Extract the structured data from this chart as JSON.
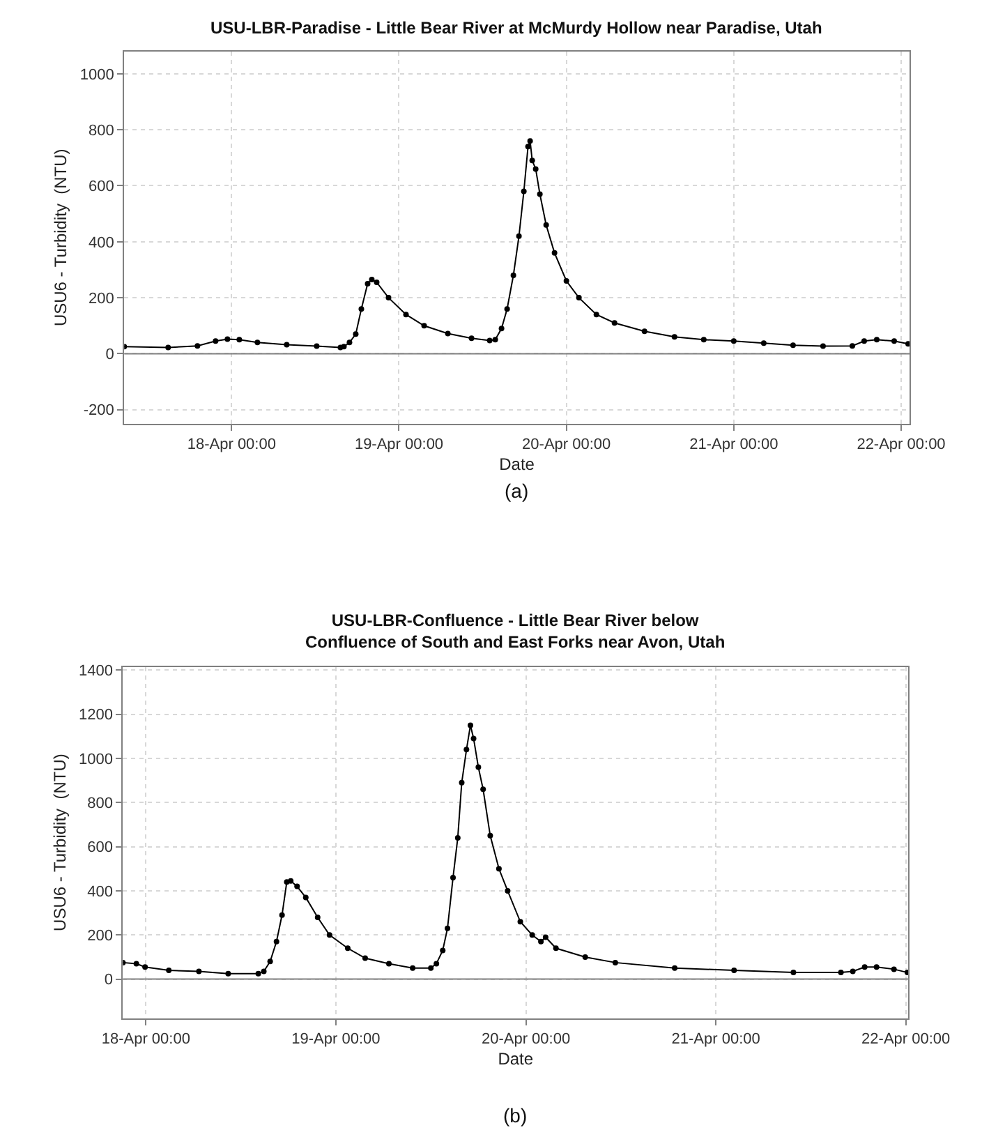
{
  "chart_data": [
    {
      "type": "line",
      "title": "USU-LBR-Paradise - Little Bear River at McMurdy Hollow near Paradise, Utah",
      "xlabel": "Date",
      "ylabel": "USU6 - Turbidity  (NTU)",
      "marker": "circle",
      "line_style": "solid",
      "grid": true,
      "x": [
        "--04-17T08:36",
        "--04-17T14:54",
        "--04-17T19:06",
        "--04-17T21:42",
        "--04-17T23:24",
        "--04-18T01:06",
        "--04-18T03:42",
        "--04-18T07:54",
        "--04-18T12:12",
        "--04-18T15:36",
        "--04-18T16:06",
        "--04-18T16:54",
        "--04-18T17:48",
        "--04-18T18:36",
        "--04-18T19:30",
        "--04-18T20:06",
        "--04-18T20:48",
        "--04-18T22:30",
        "--04-19T01:00",
        "--04-19T03:36",
        "--04-19T07:00",
        "--04-19T10:24",
        "--04-19T13:00",
        "--04-19T13:48",
        "--04-19T14:42",
        "--04-19T15:30",
        "--04-19T16:24",
        "--04-19T17:12",
        "--04-19T17:54",
        "--04-19T18:30",
        "--04-19T18:48",
        "--04-19T19:06",
        "--04-19T19:36",
        "--04-19T20:12",
        "--04-19T21:06",
        "--04-19T22:18",
        "--04-20T00:00",
        "--04-20T01:48",
        "--04-20T04:18",
        "--04-20T06:54",
        "--04-20T11:12",
        "--04-20T15:30",
        "--04-20T19:42",
        "--04-21T00:00",
        "--04-21T04:18",
        "--04-21T08:30",
        "--04-21T12:48",
        "--04-21T17:00",
        "--04-21T18:42",
        "--04-21T20:30",
        "--04-21T23:00",
        "--04-22T01:00"
      ],
      "series": [
        {
          "color": "#000000",
          "values": [
            25,
            22,
            28,
            45,
            52,
            50,
            40,
            32,
            27,
            22,
            25,
            40,
            70,
            160,
            250,
            265,
            255,
            200,
            140,
            100,
            72,
            55,
            47,
            50,
            90,
            160,
            280,
            420,
            580,
            740,
            760,
            690,
            660,
            570,
            460,
            360,
            260,
            200,
            140,
            110,
            80,
            60,
            50,
            45,
            38,
            30,
            27,
            28,
            45,
            50,
            45,
            35
          ]
        }
      ],
      "xlim": [
        "--04-17T08:36",
        "--04-22T01:12"
      ],
      "xticks": [
        {
          "value": "--04-18T00:00",
          "label": "18-Apr 00:00"
        },
        {
          "value": "--04-19T00:00",
          "label": "19-Apr 00:00"
        },
        {
          "value": "--04-20T00:00",
          "label": "20-Apr 00:00"
        },
        {
          "value": "--04-21T00:00",
          "label": "21-Apr 00:00"
        },
        {
          "value": "--04-22T00:00",
          "label": "22-Apr 00:00"
        }
      ],
      "ylim": [
        -250,
        1080
      ],
      "yticks": [
        -200,
        0,
        200,
        400,
        600,
        800,
        1000
      ],
      "ref_lines": [
        {
          "axis": "y",
          "value": 0,
          "color": "#808080"
        }
      ],
      "annotations": [
        "(a)"
      ]
    },
    {
      "type": "line",
      "title": "USU-LBR-Confluence - Little Bear River below\nConfluence of South and East Forks near Avon, Utah",
      "xlabel": "Date",
      "ylabel": "USU6 - Turbidity  (NTU)",
      "marker": "circle",
      "line_style": "solid",
      "grid": true,
      "x": [
        "--04-17T21:06",
        "--04-17T22:48",
        "--04-17T23:54",
        "--04-18T02:54",
        "--04-18T06:42",
        "--04-18T10:24",
        "--04-18T14:12",
        "--04-18T14:54",
        "--04-18T15:42",
        "--04-18T16:30",
        "--04-18T17:12",
        "--04-18T17:48",
        "--04-18T18:18",
        "--04-18T19:06",
        "--04-18T20:12",
        "--04-18T21:42",
        "--04-18T23:12",
        "--04-19T01:30",
        "--04-19T03:42",
        "--04-19T06:42",
        "--04-19T09:42",
        "--04-19T12:00",
        "--04-19T12:42",
        "--04-19T13:30",
        "--04-19T14:06",
        "--04-19T14:48",
        "--04-19T15:24",
        "--04-19T15:54",
        "--04-19T16:30",
        "--04-19T17:00",
        "--04-19T17:24",
        "--04-19T18:00",
        "--04-19T18:36",
        "--04-19T19:30",
        "--04-19T20:36",
        "--04-19T21:42",
        "--04-19T23:18",
        "--04-20T00:48",
        "--04-20T01:54",
        "--04-20T02:30",
        "--04-20T03:48",
        "--04-20T07:30",
        "--04-20T11:18",
        "--04-20T18:48",
        "--04-21T02:18",
        "--04-21T09:48",
        "--04-21T15:48",
        "--04-21T17:18",
        "--04-21T18:48",
        "--04-21T20:18",
        "--04-21T22:30",
        "--04-22T00:12"
      ],
      "series": [
        {
          "color": "#000000",
          "values": [
            75,
            70,
            55,
            40,
            35,
            25,
            25,
            35,
            80,
            170,
            290,
            440,
            445,
            420,
            370,
            280,
            200,
            140,
            95,
            70,
            50,
            50,
            70,
            130,
            230,
            460,
            640,
            890,
            1040,
            1150,
            1090,
            960,
            860,
            650,
            500,
            400,
            260,
            200,
            170,
            190,
            140,
            100,
            75,
            50,
            40,
            30,
            30,
            35,
            55,
            55,
            45,
            30
          ]
        }
      ],
      "xlim": [
        "--04-17T21:06",
        "--04-22T00:18"
      ],
      "xticks": [
        {
          "value": "--04-18T00:00",
          "label": "18-Apr 00:00"
        },
        {
          "value": "--04-19T00:00",
          "label": "19-Apr 00:00"
        },
        {
          "value": "--04-20T00:00",
          "label": "20-Apr 00:00"
        },
        {
          "value": "--04-21T00:00",
          "label": "21-Apr 00:00"
        },
        {
          "value": "--04-22T00:00",
          "label": "22-Apr 00:00"
        }
      ],
      "ylim": [
        -177,
        1415
      ],
      "yticks": [
        0,
        200,
        400,
        600,
        800,
        1000,
        1200,
        1400
      ],
      "ref_lines": [
        {
          "axis": "y",
          "value": 0,
          "color": "#808080"
        }
      ],
      "annotations": [
        "(b)"
      ]
    }
  ]
}
